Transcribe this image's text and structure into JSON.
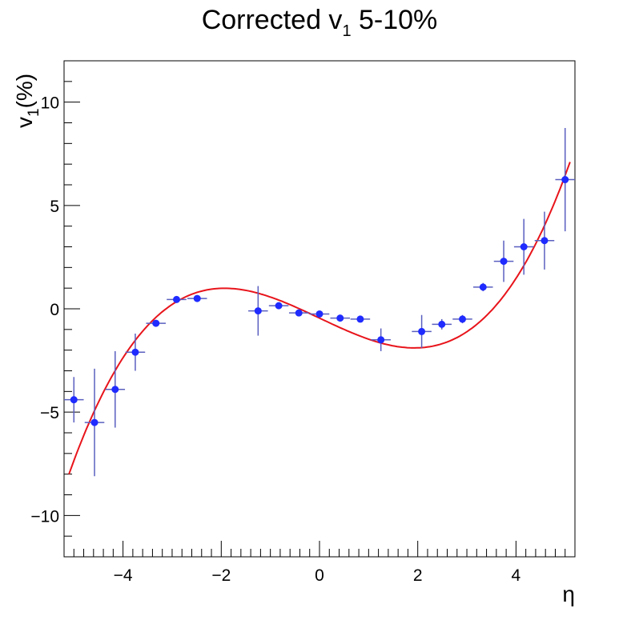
{
  "chart_data": {
    "type": "scatter",
    "title": "Corrected v1 5-10%",
    "title_main": "Corrected v",
    "title_sub": "1",
    "title_rest": " 5-10%",
    "xlabel": "η",
    "ylabel": "v1(%)",
    "ylabel_main": "v",
    "ylabel_sub": "1",
    "ylabel_rest": "(%)",
    "xlim": [
      -5.2,
      5.2
    ],
    "ylim": [
      -12,
      12
    ],
    "xticks": [
      -4,
      -2,
      0,
      2,
      4
    ],
    "xtick_labels": [
      "−4",
      "−2",
      "0",
      "2",
      "4"
    ],
    "yticks": [
      -10,
      -5,
      0,
      5,
      10
    ],
    "ytick_labels": [
      "−10",
      "−5",
      "0",
      "5",
      "10"
    ],
    "grid": false,
    "colors": {
      "points": "#1f2bff",
      "errorbars": "#5a5fbf",
      "fit": "#e8141b"
    },
    "series": [
      {
        "kind": "points",
        "x": [
          -5.0,
          -4.58,
          -4.16,
          -3.75,
          -3.33,
          -2.91,
          -2.49,
          -1.25,
          -0.83,
          -0.42,
          0.0,
          0.42,
          0.83,
          1.25,
          2.08,
          2.49,
          2.91,
          3.33,
          3.75,
          4.16,
          4.58,
          5.0
        ],
        "y": [
          -4.4,
          -5.5,
          -3.9,
          -2.1,
          -0.7,
          0.45,
          0.5,
          -0.1,
          0.15,
          -0.2,
          -0.25,
          -0.45,
          -0.5,
          -1.5,
          -1.1,
          -0.75,
          -0.5,
          1.05,
          2.3,
          3.0,
          3.3,
          6.25
        ],
        "xerr": [
          0.2,
          0.2,
          0.2,
          0.2,
          0.2,
          0.2,
          0.2,
          0.2,
          0.2,
          0.2,
          0.2,
          0.2,
          0.2,
          0.2,
          0.2,
          0.2,
          0.2,
          0.2,
          0.2,
          0.2,
          0.2,
          0.2
        ],
        "yerr": [
          1.1,
          2.6,
          1.85,
          0.9,
          0.15,
          0.15,
          0.12,
          1.2,
          0.15,
          0.12,
          0.12,
          0.15,
          0.12,
          0.55,
          0.8,
          0.25,
          0.2,
          0.2,
          1.0,
          1.35,
          1.4,
          2.5
        ]
      },
      {
        "kind": "fit-curve",
        "coeffs": [
          -0.45,
          -1.12,
          0.0,
          0.1
        ],
        "x_range": [
          -5.1,
          5.1
        ]
      }
    ]
  }
}
